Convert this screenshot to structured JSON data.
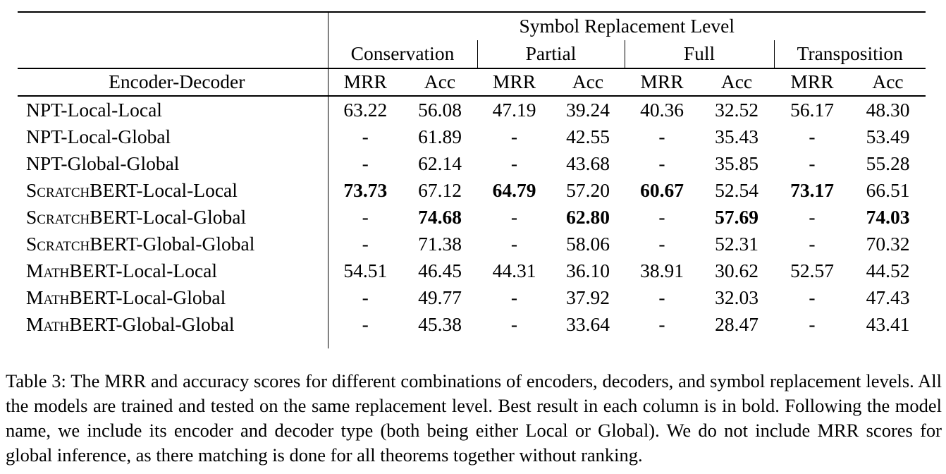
{
  "table": {
    "spanning_header": "Symbol Replacement Level",
    "row_header_label": "Encoder-Decoder",
    "groups": [
      {
        "label": "Conservation"
      },
      {
        "label": "Partial"
      },
      {
        "label": "Full"
      },
      {
        "label": "Transposition"
      }
    ],
    "metric_headers": [
      "MRR",
      "Acc",
      "MRR",
      "Acc",
      "MRR",
      "Acc",
      "MRR",
      "Acc"
    ],
    "rows": [
      {
        "model_smallcaps": "",
        "model_rest": "NPT-Local-Local",
        "cells": [
          {
            "v": "63.22"
          },
          {
            "v": "56.08"
          },
          {
            "v": "47.19"
          },
          {
            "v": "39.24"
          },
          {
            "v": "40.36"
          },
          {
            "v": "32.52"
          },
          {
            "v": "56.17"
          },
          {
            "v": "48.30"
          }
        ]
      },
      {
        "model_smallcaps": "",
        "model_rest": "NPT-Local-Global",
        "cells": [
          {
            "v": "-"
          },
          {
            "v": "61.89"
          },
          {
            "v": "-"
          },
          {
            "v": "42.55"
          },
          {
            "v": "-"
          },
          {
            "v": "35.43"
          },
          {
            "v": "-"
          },
          {
            "v": "53.49"
          }
        ]
      },
      {
        "model_smallcaps": "",
        "model_rest": "NPT-Global-Global",
        "cells": [
          {
            "v": "-"
          },
          {
            "v": "62.14"
          },
          {
            "v": "-"
          },
          {
            "v": "43.68"
          },
          {
            "v": "-"
          },
          {
            "v": "35.85"
          },
          {
            "v": "-"
          },
          {
            "v": "55.28"
          }
        ]
      },
      {
        "model_smallcaps": "Scratch",
        "model_rest": "BERT-Local-Local",
        "cells": [
          {
            "v": "73.73",
            "bold": true
          },
          {
            "v": "67.12"
          },
          {
            "v": "64.79",
            "bold": true
          },
          {
            "v": "57.20"
          },
          {
            "v": "60.67",
            "bold": true
          },
          {
            "v": "52.54"
          },
          {
            "v": "73.17",
            "bold": true
          },
          {
            "v": "66.51"
          }
        ]
      },
      {
        "model_smallcaps": "Scratch",
        "model_rest": "BERT-Local-Global",
        "cells": [
          {
            "v": "-"
          },
          {
            "v": "74.68",
            "bold": true
          },
          {
            "v": "-"
          },
          {
            "v": "62.80",
            "bold": true
          },
          {
            "v": "-"
          },
          {
            "v": "57.69",
            "bold": true
          },
          {
            "v": "-"
          },
          {
            "v": "74.03",
            "bold": true
          }
        ]
      },
      {
        "model_smallcaps": "Scratch",
        "model_rest": "BERT-Global-Global",
        "cells": [
          {
            "v": "-"
          },
          {
            "v": "71.38"
          },
          {
            "v": "-"
          },
          {
            "v": "58.06"
          },
          {
            "v": "-"
          },
          {
            "v": "52.31"
          },
          {
            "v": "-"
          },
          {
            "v": "70.32"
          }
        ]
      },
      {
        "model_smallcaps": "Math",
        "model_rest": "BERT-Local-Local",
        "cells": [
          {
            "v": "54.51"
          },
          {
            "v": "46.45"
          },
          {
            "v": "44.31"
          },
          {
            "v": "36.10"
          },
          {
            "v": "38.91"
          },
          {
            "v": "30.62"
          },
          {
            "v": "52.57"
          },
          {
            "v": "44.52"
          }
        ]
      },
      {
        "model_smallcaps": "Math",
        "model_rest": "BERT-Local-Global",
        "cells": [
          {
            "v": "-"
          },
          {
            "v": "49.77"
          },
          {
            "v": "-"
          },
          {
            "v": "37.92"
          },
          {
            "v": "-"
          },
          {
            "v": "32.03"
          },
          {
            "v": "-"
          },
          {
            "v": "47.43"
          }
        ]
      },
      {
        "model_smallcaps": "Math",
        "model_rest": "BERT-Global-Global",
        "cells": [
          {
            "v": "-"
          },
          {
            "v": "45.38"
          },
          {
            "v": "-"
          },
          {
            "v": "33.64"
          },
          {
            "v": "-"
          },
          {
            "v": "28.47"
          },
          {
            "v": "-"
          },
          {
            "v": "43.41"
          }
        ]
      }
    ]
  },
  "caption": {
    "text": "Table 3: The MRR and accuracy scores for different combinations of encoders, decoders, and symbol replacement levels. All the models are trained and tested on the same replacement level. Best result in each column is in bold. Following the model name, we include its encoder and decoder type (both being either Local or Global). We do not include MRR scores for global inference, as there matching is done for all theorems together without ranking."
  }
}
